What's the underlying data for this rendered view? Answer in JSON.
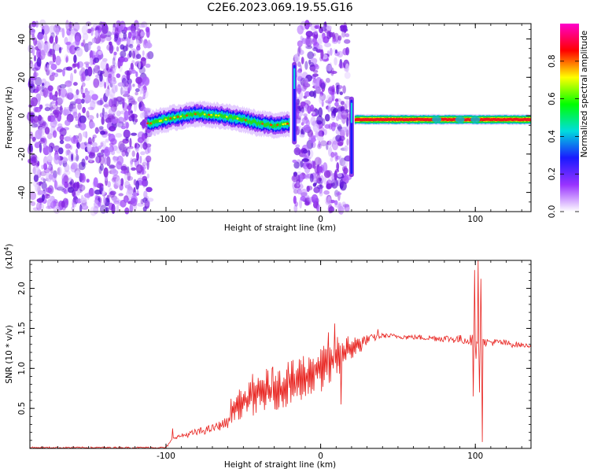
{
  "page_title": "C2E6.2023.069.19.55.G16",
  "chart_data": [
    {
      "type": "heatmap",
      "title": "C2E6.2023.069.19.55.G16",
      "xlabel": "Height of straight line (km)",
      "ylabel": "Frequency (Hz)",
      "xlim": [
        -188,
        136
      ],
      "ylim": [
        -50,
        48
      ],
      "x_ticks": [
        -100,
        0,
        100
      ],
      "y_ticks": [
        40,
        20,
        0,
        -20,
        -40
      ],
      "colorbar": {
        "label": "Normalized spectral amplitude",
        "range": [
          0.0,
          1.0
        ],
        "ticks": [
          0.0,
          0.2,
          0.4,
          0.6,
          0.8
        ],
        "colors": [
          "#ffffff",
          "#9933ff",
          "#1a1aff",
          "#00dddd",
          "#00ff00",
          "#ffff00",
          "#ff0000",
          "#ff00cc"
        ]
      },
      "regions": [
        {
          "name": "noise",
          "x_range": [
            -188,
            -110
          ],
          "freq_range": [
            -50,
            48
          ]
        },
        {
          "name": "noise",
          "x_range": [
            -17,
            18
          ],
          "freq_range": [
            -50,
            48
          ]
        },
        {
          "name": "signal",
          "x_range": [
            -112,
            -20
          ],
          "center_freq": [
            [
              -110,
              -4
            ],
            [
              -95,
              -1
            ],
            [
              -80,
              1
            ],
            [
              -65,
              0
            ],
            [
              -50,
              -2
            ],
            [
              -40,
              -4
            ],
            [
              -30,
              -5
            ],
            [
              -20,
              -4
            ]
          ]
        },
        {
          "name": "signal",
          "x_range": [
            22,
            136
          ],
          "center_freq": [
            [
              22,
              -2
            ],
            [
              136,
              -2
            ]
          ]
        }
      ],
      "spikes": [
        {
          "x": -17,
          "freq_range": [
            -15,
            28
          ]
        },
        {
          "x": 20,
          "freq_range": [
            -32,
            10
          ]
        }
      ]
    },
    {
      "type": "line",
      "title": "",
      "xlabel": "Height of straight line (km)",
      "ylabel": "SNR (10 * v/v)",
      "y_scale_label": "(x10",
      "y_scale_exp": "4",
      "y_scale_close": ")",
      "xlim": [
        -188,
        136
      ],
      "ylim": [
        0,
        2.35
      ],
      "x_ticks": [
        -100,
        0,
        100
      ],
      "y_ticks": [
        0.5,
        1.0,
        1.5,
        2.0
      ],
      "y_tick_labels": [
        "0.5",
        "1.0",
        "1.5",
        "2.0"
      ],
      "series": [
        {
          "color": "#e8221e",
          "envelope": [
            [
              -188,
              0.02,
              0.0
            ],
            [
              -100,
              0.02,
              0.0
            ],
            [
              -95,
              0.15,
              0.12
            ],
            [
              -80,
              0.25,
              0.15
            ],
            [
              -70,
              0.3,
              0.2
            ],
            [
              -60,
              0.4,
              0.25
            ],
            [
              -55,
              0.7,
              0.35
            ],
            [
              -45,
              0.85,
              0.4
            ],
            [
              -35,
              1.0,
              0.45
            ],
            [
              -25,
              1.0,
              0.5
            ],
            [
              -15,
              1.15,
              0.55
            ],
            [
              -5,
              1.25,
              0.65
            ],
            [
              5,
              1.3,
              0.75
            ],
            [
              12,
              1.45,
              0.9
            ],
            [
              20,
              1.4,
              1.1
            ],
            [
              30,
              1.42,
              1.3
            ],
            [
              40,
              1.44,
              1.38
            ],
            [
              60,
              1.42,
              1.36
            ],
            [
              80,
              1.42,
              1.33
            ],
            [
              92,
              1.42,
              1.3
            ],
            [
              100,
              1.43,
              1.28
            ],
            [
              105,
              1.38,
              1.28
            ],
            [
              115,
              1.37,
              1.28
            ],
            [
              125,
              1.34,
              1.26
            ],
            [
              136,
              1.3,
              1.26
            ]
          ],
          "spikes": [
            [
              -96,
              0.25
            ],
            [
              -65,
              0.32
            ],
            [
              -58,
              0.62
            ],
            [
              -44,
              0.93
            ],
            [
              -31,
              1.02
            ],
            [
              -21,
              1.08
            ],
            [
              -16,
              0.8
            ],
            [
              -4,
              1.03
            ],
            [
              5,
              1.45
            ],
            [
              9,
              1.56
            ],
            [
              13,
              0.55
            ],
            [
              26,
              1.21
            ],
            [
              37,
              1.49
            ],
            [
              98.5,
              0.65
            ],
            [
              99.5,
              2.23
            ],
            [
              100.5,
              1.12
            ],
            [
              101.5,
              2.36
            ],
            [
              102.5,
              0.7
            ],
            [
              103.5,
              2.12
            ],
            [
              104.5,
              0.08
            ],
            [
              105.5,
              1.36
            ]
          ]
        }
      ]
    }
  ]
}
